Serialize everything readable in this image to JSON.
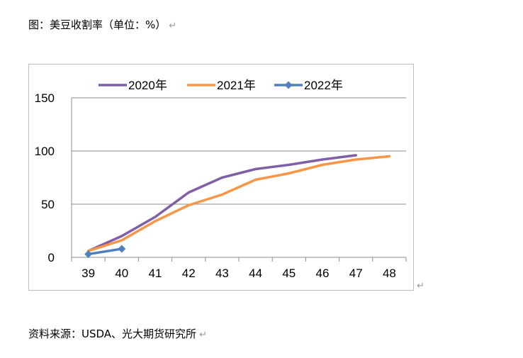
{
  "caption": {
    "text": "图：美豆收割率（单位：%）",
    "mark": "↵"
  },
  "source": {
    "text": "资料来源：USDA、光大期货研究所",
    "mark": "↵"
  },
  "frame_mark": "↵",
  "chart_data": {
    "type": "line",
    "title": "",
    "xlabel": "",
    "ylabel": "",
    "categories": [
      "39",
      "40",
      "41",
      "42",
      "43",
      "44",
      "45",
      "46",
      "47",
      "48"
    ],
    "ylim": [
      0,
      150
    ],
    "yticks": [
      "0",
      "50",
      "100",
      "150"
    ],
    "grid": true,
    "legend_position": "top",
    "series": [
      {
        "name": "2020年",
        "color": "#7F5FA6",
        "marker": "none",
        "x": [
          39,
          40,
          41,
          42,
          43,
          44,
          45,
          46,
          47
        ],
        "values": [
          6,
          20,
          38,
          61,
          75,
          83,
          87,
          92,
          96
        ]
      },
      {
        "name": "2021年",
        "color": "#F79646",
        "marker": "none",
        "x": [
          39,
          40,
          41,
          42,
          43,
          44,
          45,
          46,
          47,
          48
        ],
        "values": [
          6,
          16,
          34,
          49,
          59,
          73,
          79,
          87,
          92,
          95
        ]
      },
      {
        "name": "2022年",
        "color": "#4F81BD",
        "marker": "diamond",
        "x": [
          39,
          40
        ],
        "values": [
          3,
          8
        ]
      }
    ]
  }
}
